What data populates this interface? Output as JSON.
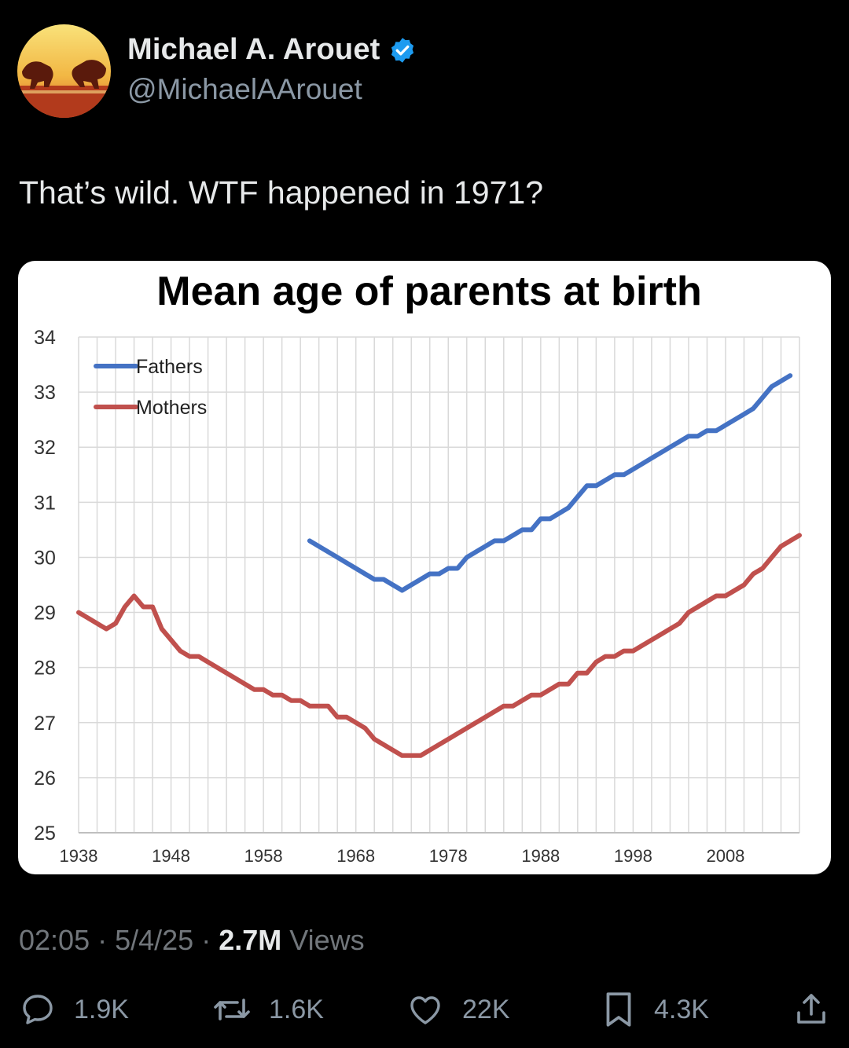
{
  "author": {
    "name": "Michael A. Arouet",
    "handle": "@MichaelAArouet"
  },
  "tweet": {
    "text": "That’s wild. WTF happened in 1971?"
  },
  "meta": {
    "time": "02:05",
    "sep1": " · ",
    "date": "5/4/25",
    "sep2": " · ",
    "views_count": "2.7M",
    "views_label": " Views"
  },
  "actions": {
    "replies": "1.9K",
    "reposts": "1.6K",
    "likes": "22K",
    "bookmarks": "4.3K"
  },
  "colors": {
    "verified": "#1d9bf0",
    "fathers": "#4472c4",
    "mothers": "#c0504d"
  },
  "chart_data": {
    "type": "line",
    "title": "Mean age of parents at birth",
    "xlabel": "",
    "ylabel": "",
    "xlim": [
      1938,
      2016
    ],
    "ylim": [
      25,
      34
    ],
    "x_ticks": [
      "1938",
      "1948",
      "1958",
      "1968",
      "1978",
      "1988",
      "1998",
      "2008"
    ],
    "y_ticks": [
      "34",
      "33",
      "32",
      "31",
      "30",
      "29",
      "28",
      "27",
      "26",
      "25"
    ],
    "grid": true,
    "legend_position": "top-left",
    "series": [
      {
        "name": "Fathers",
        "color": "#4472c4",
        "points": [
          [
            1963,
            30.3
          ],
          [
            1966,
            30.0
          ],
          [
            1969,
            29.7
          ],
          [
            1970,
            29.6
          ],
          [
            1971,
            29.6
          ],
          [
            1972,
            29.5
          ],
          [
            1973,
            29.4
          ],
          [
            1974,
            29.5
          ],
          [
            1975,
            29.6
          ],
          [
            1976,
            29.7
          ],
          [
            1977,
            29.7
          ],
          [
            1978,
            29.8
          ],
          [
            1979,
            29.8
          ],
          [
            1980,
            30.0
          ],
          [
            1981,
            30.1
          ],
          [
            1982,
            30.2
          ],
          [
            1983,
            30.3
          ],
          [
            1984,
            30.3
          ],
          [
            1985,
            30.4
          ],
          [
            1986,
            30.5
          ],
          [
            1987,
            30.5
          ],
          [
            1988,
            30.7
          ],
          [
            1989,
            30.7
          ],
          [
            1990,
            30.8
          ],
          [
            1991,
            30.9
          ],
          [
            1992,
            31.1
          ],
          [
            1993,
            31.3
          ],
          [
            1994,
            31.3
          ],
          [
            1995,
            31.4
          ],
          [
            1996,
            31.5
          ],
          [
            1997,
            31.5
          ],
          [
            1998,
            31.6
          ],
          [
            1999,
            31.7
          ],
          [
            2000,
            31.8
          ],
          [
            2001,
            31.9
          ],
          [
            2002,
            32.0
          ],
          [
            2003,
            32.1
          ],
          [
            2004,
            32.2
          ],
          [
            2005,
            32.2
          ],
          [
            2006,
            32.3
          ],
          [
            2007,
            32.3
          ],
          [
            2008,
            32.4
          ],
          [
            2009,
            32.5
          ],
          [
            2010,
            32.6
          ],
          [
            2011,
            32.7
          ],
          [
            2012,
            32.9
          ],
          [
            2013,
            33.1
          ],
          [
            2014,
            33.2
          ],
          [
            2015,
            33.3
          ]
        ]
      },
      {
        "name": "Mothers",
        "color": "#c0504d",
        "points": [
          [
            1938,
            29.0
          ],
          [
            1939,
            28.9
          ],
          [
            1940,
            28.8
          ],
          [
            1941,
            28.7
          ],
          [
            1942,
            28.8
          ],
          [
            1943,
            29.1
          ],
          [
            1944,
            29.3
          ],
          [
            1945,
            29.1
          ],
          [
            1946,
            29.1
          ],
          [
            1947,
            28.7
          ],
          [
            1948,
            28.5
          ],
          [
            1949,
            28.3
          ],
          [
            1950,
            28.2
          ],
          [
            1951,
            28.2
          ],
          [
            1952,
            28.1
          ],
          [
            1953,
            28.0
          ],
          [
            1954,
            27.9
          ],
          [
            1955,
            27.8
          ],
          [
            1956,
            27.7
          ],
          [
            1957,
            27.6
          ],
          [
            1958,
            27.6
          ],
          [
            1959,
            27.5
          ],
          [
            1960,
            27.5
          ],
          [
            1961,
            27.4
          ],
          [
            1962,
            27.4
          ],
          [
            1963,
            27.3
          ],
          [
            1964,
            27.3
          ],
          [
            1965,
            27.3
          ],
          [
            1966,
            27.1
          ],
          [
            1967,
            27.1
          ],
          [
            1968,
            27.0
          ],
          [
            1969,
            26.9
          ],
          [
            1970,
            26.7
          ],
          [
            1971,
            26.6
          ],
          [
            1972,
            26.5
          ],
          [
            1973,
            26.4
          ],
          [
            1974,
            26.4
          ],
          [
            1975,
            26.4
          ],
          [
            1976,
            26.5
          ],
          [
            1977,
            26.6
          ],
          [
            1978,
            26.7
          ],
          [
            1979,
            26.8
          ],
          [
            1980,
            26.9
          ],
          [
            1981,
            27.0
          ],
          [
            1982,
            27.1
          ],
          [
            1983,
            27.2
          ],
          [
            1984,
            27.3
          ],
          [
            1985,
            27.3
          ],
          [
            1986,
            27.4
          ],
          [
            1987,
            27.5
          ],
          [
            1988,
            27.5
          ],
          [
            1989,
            27.6
          ],
          [
            1990,
            27.7
          ],
          [
            1991,
            27.7
          ],
          [
            1992,
            27.9
          ],
          [
            1993,
            27.9
          ],
          [
            1994,
            28.1
          ],
          [
            1995,
            28.2
          ],
          [
            1996,
            28.2
          ],
          [
            1997,
            28.3
          ],
          [
            1998,
            28.3
          ],
          [
            1999,
            28.4
          ],
          [
            2000,
            28.5
          ],
          [
            2001,
            28.6
          ],
          [
            2002,
            28.7
          ],
          [
            2003,
            28.8
          ],
          [
            2004,
            29.0
          ],
          [
            2005,
            29.1
          ],
          [
            2006,
            29.2
          ],
          [
            2007,
            29.3
          ],
          [
            2008,
            29.3
          ],
          [
            2009,
            29.4
          ],
          [
            2010,
            29.5
          ],
          [
            2011,
            29.7
          ],
          [
            2012,
            29.8
          ],
          [
            2013,
            30.0
          ],
          [
            2014,
            30.2
          ],
          [
            2015,
            30.3
          ],
          [
            2016,
            30.4
          ]
        ]
      }
    ]
  }
}
